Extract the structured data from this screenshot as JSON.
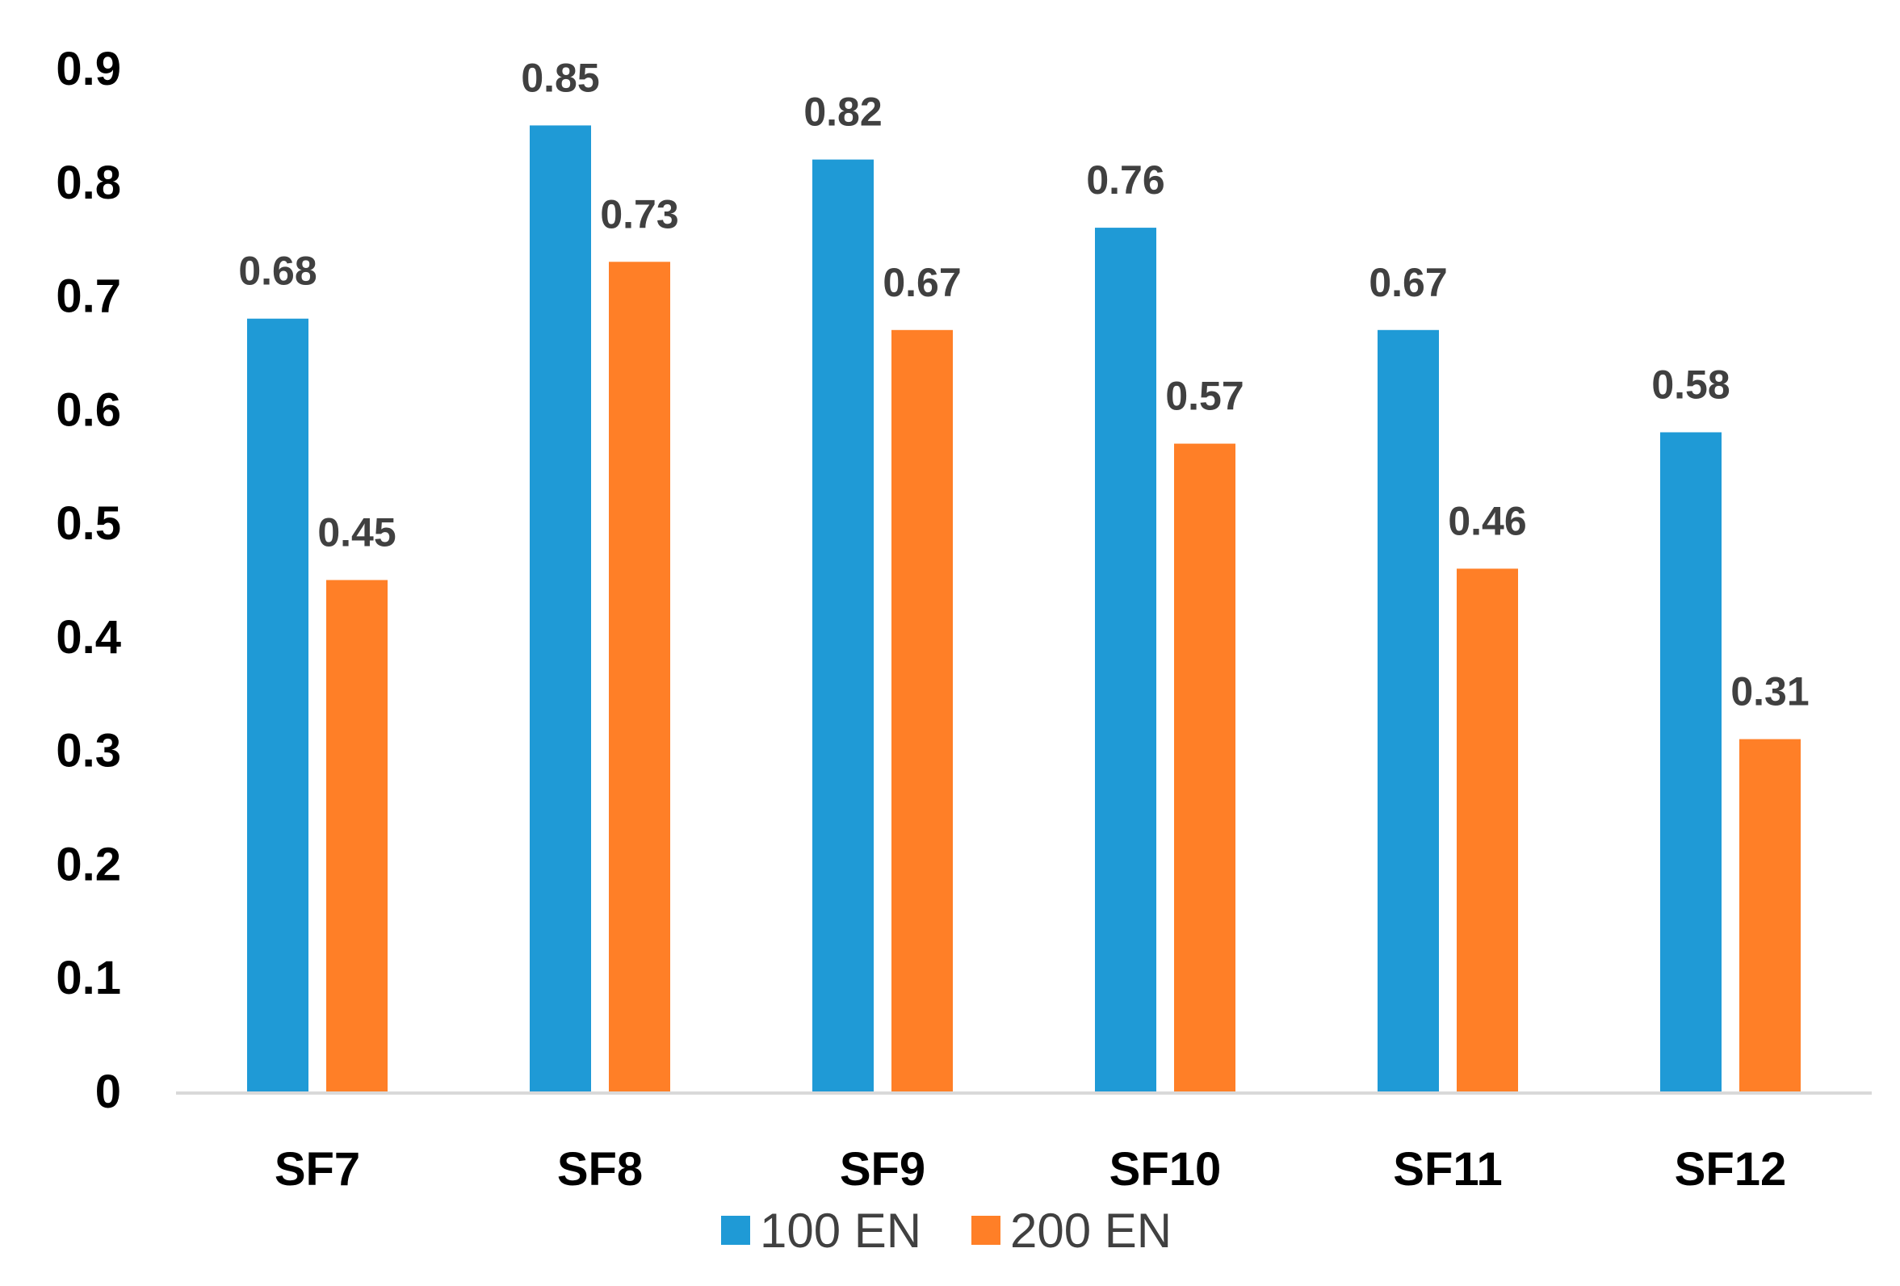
{
  "chart_data": {
    "type": "bar",
    "title": "",
    "xlabel": "",
    "ylabel": "",
    "categories": [
      "SF7",
      "SF8",
      "SF9",
      "SF10",
      "SF11",
      "SF12"
    ],
    "series": [
      {
        "name": "100 EN",
        "color": "#1F9AD6",
        "values": [
          0.68,
          0.85,
          0.82,
          0.76,
          0.67,
          0.58
        ],
        "labels": [
          "0.68",
          "0.85",
          "0.82",
          "0.76",
          "0.67",
          "0.58"
        ]
      },
      {
        "name": "200 EN",
        "color": "#FF7F27",
        "values": [
          0.45,
          0.73,
          0.67,
          0.57,
          0.46,
          0.31
        ],
        "labels": [
          "0.45",
          "0.73",
          "0.67",
          "0.57",
          "0.46",
          "0.31"
        ]
      }
    ],
    "ylim": [
      0,
      0.9
    ],
    "yticks": [
      0,
      0.1,
      0.2,
      0.3,
      0.4,
      0.5,
      0.6,
      0.7,
      0.8,
      0.9
    ],
    "ytick_labels": [
      "0",
      "0.1",
      "0.2",
      "0.3",
      "0.4",
      "0.5",
      "0.6",
      "0.7",
      "0.8",
      "0.9"
    ],
    "grid": false,
    "legend": "bottom-center",
    "axis_color": "#D9D9D9"
  }
}
